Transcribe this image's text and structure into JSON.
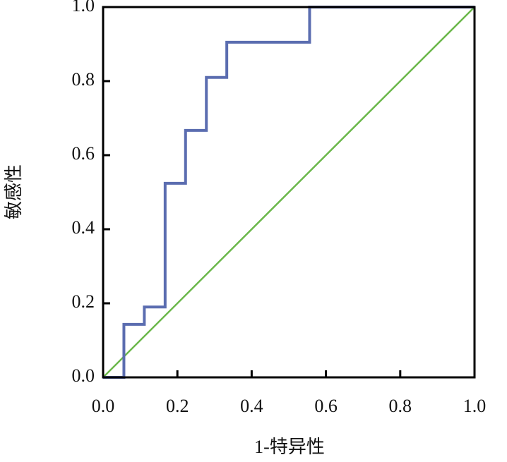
{
  "chart_data": {
    "type": "line",
    "xlabel": "1-特异性",
    "ylabel": "敏感性",
    "xlim": [
      0,
      1
    ],
    "ylim": [
      0,
      1
    ],
    "xticks": [
      {
        "value": 0,
        "label": "0.0"
      },
      0.2,
      0.4,
      0.6,
      0.8,
      {
        "value": 1,
        "label": "1.0"
      }
    ],
    "yticks": [
      {
        "value": 0,
        "label": "0.0"
      },
      0.2,
      0.4,
      0.6,
      0.8,
      {
        "value": 1,
        "label": "1.0"
      }
    ],
    "series": [
      {
        "color": "#5b6db0",
        "x": [
          0,
          0.056,
          0.056,
          0.111,
          0.111,
          0.167,
          0.167,
          0.222,
          0.222,
          0.278,
          0.278,
          0.333,
          0.333,
          0.556,
          0.556,
          1.0
        ],
        "values": [
          0,
          0,
          0.143,
          0.143,
          0.19,
          0.19,
          0.524,
          0.524,
          0.667,
          0.667,
          0.81,
          0.81,
          0.905,
          0.905,
          1.0,
          1.0
        ]
      },
      {
        "color": "#6cb84c",
        "x": [
          0,
          1
        ],
        "values": [
          0,
          1
        ]
      }
    ]
  }
}
